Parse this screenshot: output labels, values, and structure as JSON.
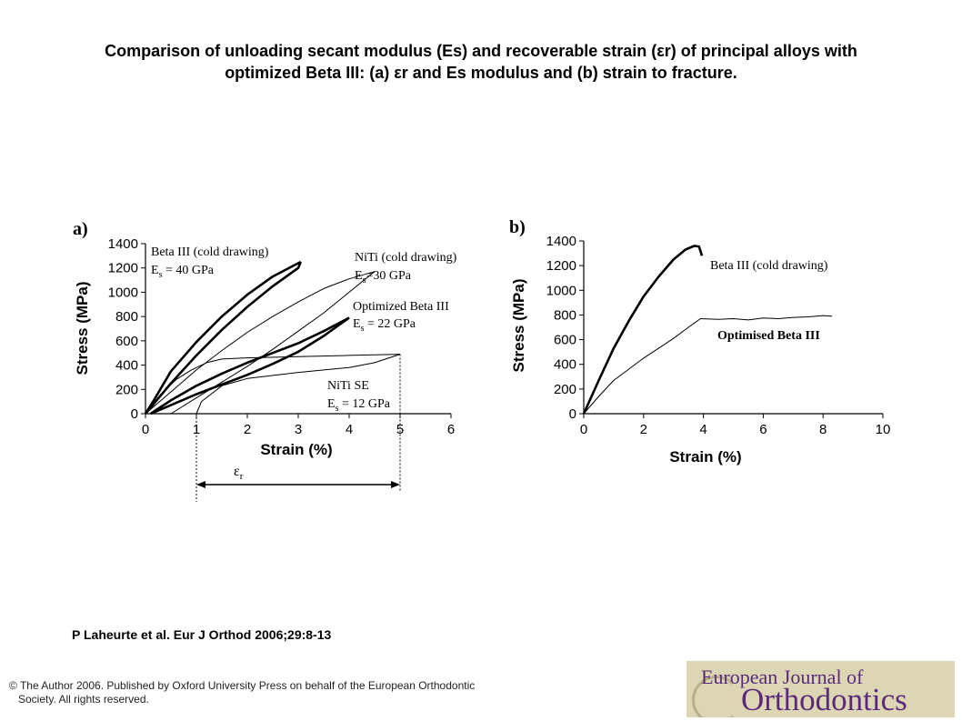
{
  "title": {
    "line1": "Comparison of unloading secant modulus (Es) and recoverable strain (εr) of principal alloys with",
    "line2": "optimized Beta III: (a) εr and Es modulus and (b) strain to fracture."
  },
  "citation": "P Laheurte et al. Eur J Orthod 2006;29:8-13",
  "copyright": {
    "line1": "© The  Author 2006. Published by Oxford University Press on behalf of the European Orthodontic",
    "line2": "Society. All rights reserved."
  },
  "logo": {
    "line1": "European Journal of",
    "line2": "Orthodontics",
    "icon": "journal-logo"
  },
  "colors": {
    "line": "#000000",
    "logo_bg": "#ddd6b4",
    "logo_text": "#5a2a7a"
  },
  "chart_data": [
    {
      "panel": "a)",
      "type": "line",
      "xlabel": "Strain (%)",
      "ylabel": "Stress (MPa)",
      "xlim": [
        0,
        6
      ],
      "ylim": [
        0,
        1400
      ],
      "xticks": [
        "0",
        "1",
        "2",
        "3",
        "4",
        "5",
        "6"
      ],
      "yticks": [
        "0",
        "200",
        "400",
        "600",
        "800",
        "1000",
        "1200",
        "1400"
      ],
      "grid": false,
      "annotations": [
        {
          "line1": "Beta III (cold drawing)",
          "line2a": "E",
          "line2sub": "s",
          "line2b": " = 40 GPa"
        },
        {
          "line1": "NiTi (cold drawing)",
          "line2a": "E",
          "line2sub": "s",
          "line2b": "=30 GPa"
        },
        {
          "line1": "Optimized Beta III",
          "line2a": "E",
          "line2sub": "s",
          "line2b": " = 22 GPa"
        },
        {
          "line1": "NiTi SE",
          "line2a": "E",
          "line2sub": "s",
          "line2b": " = 12 GPa"
        }
      ],
      "strain_marker": {
        "symbol": "ε",
        "sub": "r",
        "from": 1,
        "to": 5
      },
      "series": [
        {
          "style": "thick",
          "x": [
            0,
            0.5,
            1,
            1.5,
            2,
            2.5,
            3,
            3.05
          ],
          "y": [
            0,
            250,
            480,
            690,
            880,
            1050,
            1200,
            1250
          ]
        },
        {
          "style": "thick",
          "x": [
            3.05,
            2.5,
            2,
            1.5,
            1,
            0.5,
            0.15,
            0
          ],
          "y": [
            1250,
            1130,
            980,
            800,
            590,
            350,
            100,
            0
          ]
        },
        {
          "style": "thin",
          "x": [
            0,
            0.5,
            1,
            1.5,
            2,
            2.5,
            3,
            3.5,
            4,
            4.5
          ],
          "y": [
            0,
            180,
            360,
            520,
            670,
            800,
            920,
            1030,
            1110,
            1170
          ]
        },
        {
          "style": "thin",
          "x": [
            4.5,
            4,
            3.5,
            3,
            2.5,
            2,
            1.5,
            1,
            0.5
          ],
          "y": [
            1170,
            1000,
            830,
            680,
            530,
            390,
            260,
            130,
            0
          ]
        },
        {
          "style": "thick",
          "x": [
            0.1,
            0.5,
            1,
            1.5,
            2,
            2.5,
            3,
            3.5,
            4
          ],
          "y": [
            0,
            110,
            230,
            330,
            420,
            500,
            580,
            680,
            790
          ]
        },
        {
          "style": "thick",
          "x": [
            4,
            3.5,
            3,
            2.5,
            2,
            1.5,
            1,
            0.5,
            0.1
          ],
          "y": [
            790,
            640,
            510,
            410,
            320,
            240,
            160,
            70,
            0
          ]
        },
        {
          "style": "thin",
          "x": [
            0,
            0.3,
            0.6,
            0.9,
            1.2,
            1.5,
            2,
            3,
            4,
            5
          ],
          "y": [
            0,
            160,
            280,
            360,
            420,
            450,
            460,
            470,
            480,
            490
          ]
        },
        {
          "style": "thin",
          "x": [
            5,
            4.5,
            4,
            3,
            2,
            1.5,
            1.1,
            1
          ],
          "y": [
            490,
            420,
            380,
            340,
            290,
            230,
            100,
            0
          ]
        }
      ]
    },
    {
      "panel": "b)",
      "type": "line",
      "xlabel": "Strain (%)",
      "ylabel": "Stress (MPa)",
      "xlim": [
        0,
        10
      ],
      "ylim": [
        0,
        1400
      ],
      "xticks": [
        "0",
        "2",
        "4",
        "6",
        "8",
        "10"
      ],
      "yticks": [
        "0",
        "200",
        "400",
        "600",
        "800",
        "1000",
        "1200",
        "1400"
      ],
      "grid": false,
      "series": [
        {
          "name": "Beta III (cold drawing)",
          "style": "thick",
          "x": [
            0,
            0.5,
            1,
            1.5,
            2,
            2.5,
            3,
            3.4,
            3.7,
            3.85,
            3.9,
            3.95
          ],
          "y": [
            0,
            270,
            530,
            750,
            950,
            1110,
            1250,
            1330,
            1360,
            1355,
            1320,
            1280
          ]
        },
        {
          "name": "Optimised Beta III",
          "style": "thin",
          "x": [
            0,
            0.5,
            1,
            1.5,
            2,
            2.5,
            3,
            3.5,
            3.9,
            4.5,
            5,
            5.5,
            6,
            6.5,
            7,
            7.5,
            8,
            8.3
          ],
          "y": [
            0,
            140,
            270,
            360,
            450,
            530,
            610,
            700,
            770,
            765,
            770,
            760,
            775,
            770,
            780,
            785,
            795,
            790
          ]
        }
      ]
    }
  ]
}
